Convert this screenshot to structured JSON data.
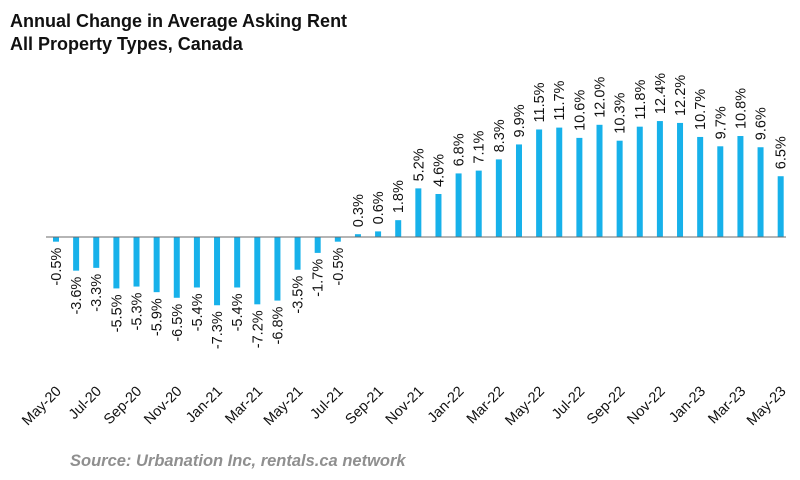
{
  "title_line1": "Annual Change in Average Asking Rent",
  "title_line2": "All Property Types, Canada",
  "source": "Source: Urbanation Inc, rentals.ca network",
  "colors": {
    "bar": "#17b1ea",
    "axis": "#6b6b6b",
    "text": "#111111",
    "source": "#8f8f8f"
  },
  "chart_data": {
    "type": "bar",
    "title": "Annual Change in Average Asking Rent All Property Types, Canada",
    "xlabel": "",
    "ylabel": "",
    "ylim": [
      -8,
      13
    ],
    "grid": false,
    "legend": "none",
    "categories": [
      "May-20",
      "Jun-20",
      "Jul-20",
      "Aug-20",
      "Sep-20",
      "Oct-20",
      "Nov-20",
      "Dec-20",
      "Jan-21",
      "Feb-21",
      "Mar-21",
      "Apr-21",
      "May-21",
      "Jun-21",
      "Jul-21",
      "Aug-21",
      "Sep-21",
      "Oct-21",
      "Nov-21",
      "Dec-21",
      "Jan-22",
      "Feb-22",
      "Mar-22",
      "Apr-22",
      "May-22",
      "Jun-22",
      "Jul-22",
      "Aug-22",
      "Sep-22",
      "Oct-22",
      "Nov-22",
      "Dec-22",
      "Jan-23",
      "Feb-23",
      "Mar-23",
      "Apr-23",
      "May-23"
    ],
    "tick_labels": [
      "May-20",
      "",
      "Jul-20",
      "",
      "Sep-20",
      "",
      "Nov-20",
      "",
      "Jan-21",
      "",
      "Mar-21",
      "",
      "May-21",
      "",
      "Jul-21",
      "",
      "Sep-21",
      "",
      "Nov-21",
      "",
      "Jan-22",
      "",
      "Mar-22",
      "",
      "May-22",
      "",
      "Jul-22",
      "",
      "Sep-22",
      "",
      "Nov-22",
      "",
      "Jan-23",
      "",
      "Mar-23",
      "",
      "May-23"
    ],
    "values": [
      -0.5,
      -3.6,
      -3.3,
      -5.5,
      -5.3,
      -5.9,
      -6.5,
      -5.4,
      -7.3,
      -5.4,
      -7.2,
      -6.8,
      -3.5,
      -1.7,
      -0.5,
      0.3,
      0.6,
      1.8,
      5.2,
      4.6,
      6.8,
      7.1,
      8.3,
      9.9,
      11.5,
      11.7,
      10.6,
      12.0,
      10.3,
      11.8,
      12.4,
      12.2,
      10.7,
      9.7,
      10.8,
      9.6,
      6.5
    ],
    "data_labels": [
      "-0.5%",
      "-3.6%",
      "-3.3%",
      "-5.5%",
      "-5.3%",
      "-5.9%",
      "-6.5%",
      "-5.4%",
      "-7.3%",
      "-5.4%",
      "-7.2%",
      "-6.8%",
      "-3.5%",
      "-1.7%",
      "-0.5%",
      "0.3%",
      "0.6%",
      "1.8%",
      "5.2%",
      "4.6%",
      "6.8%",
      "7.1%",
      "8.3%",
      "9.9%",
      "11.5%",
      "11.7%",
      "10.6%",
      "12.0%",
      "10.3%",
      "11.8%",
      "12.4%",
      "12.2%",
      "10.7%",
      "9.7%",
      "10.8%",
      "9.6%",
      "6.5%"
    ]
  }
}
